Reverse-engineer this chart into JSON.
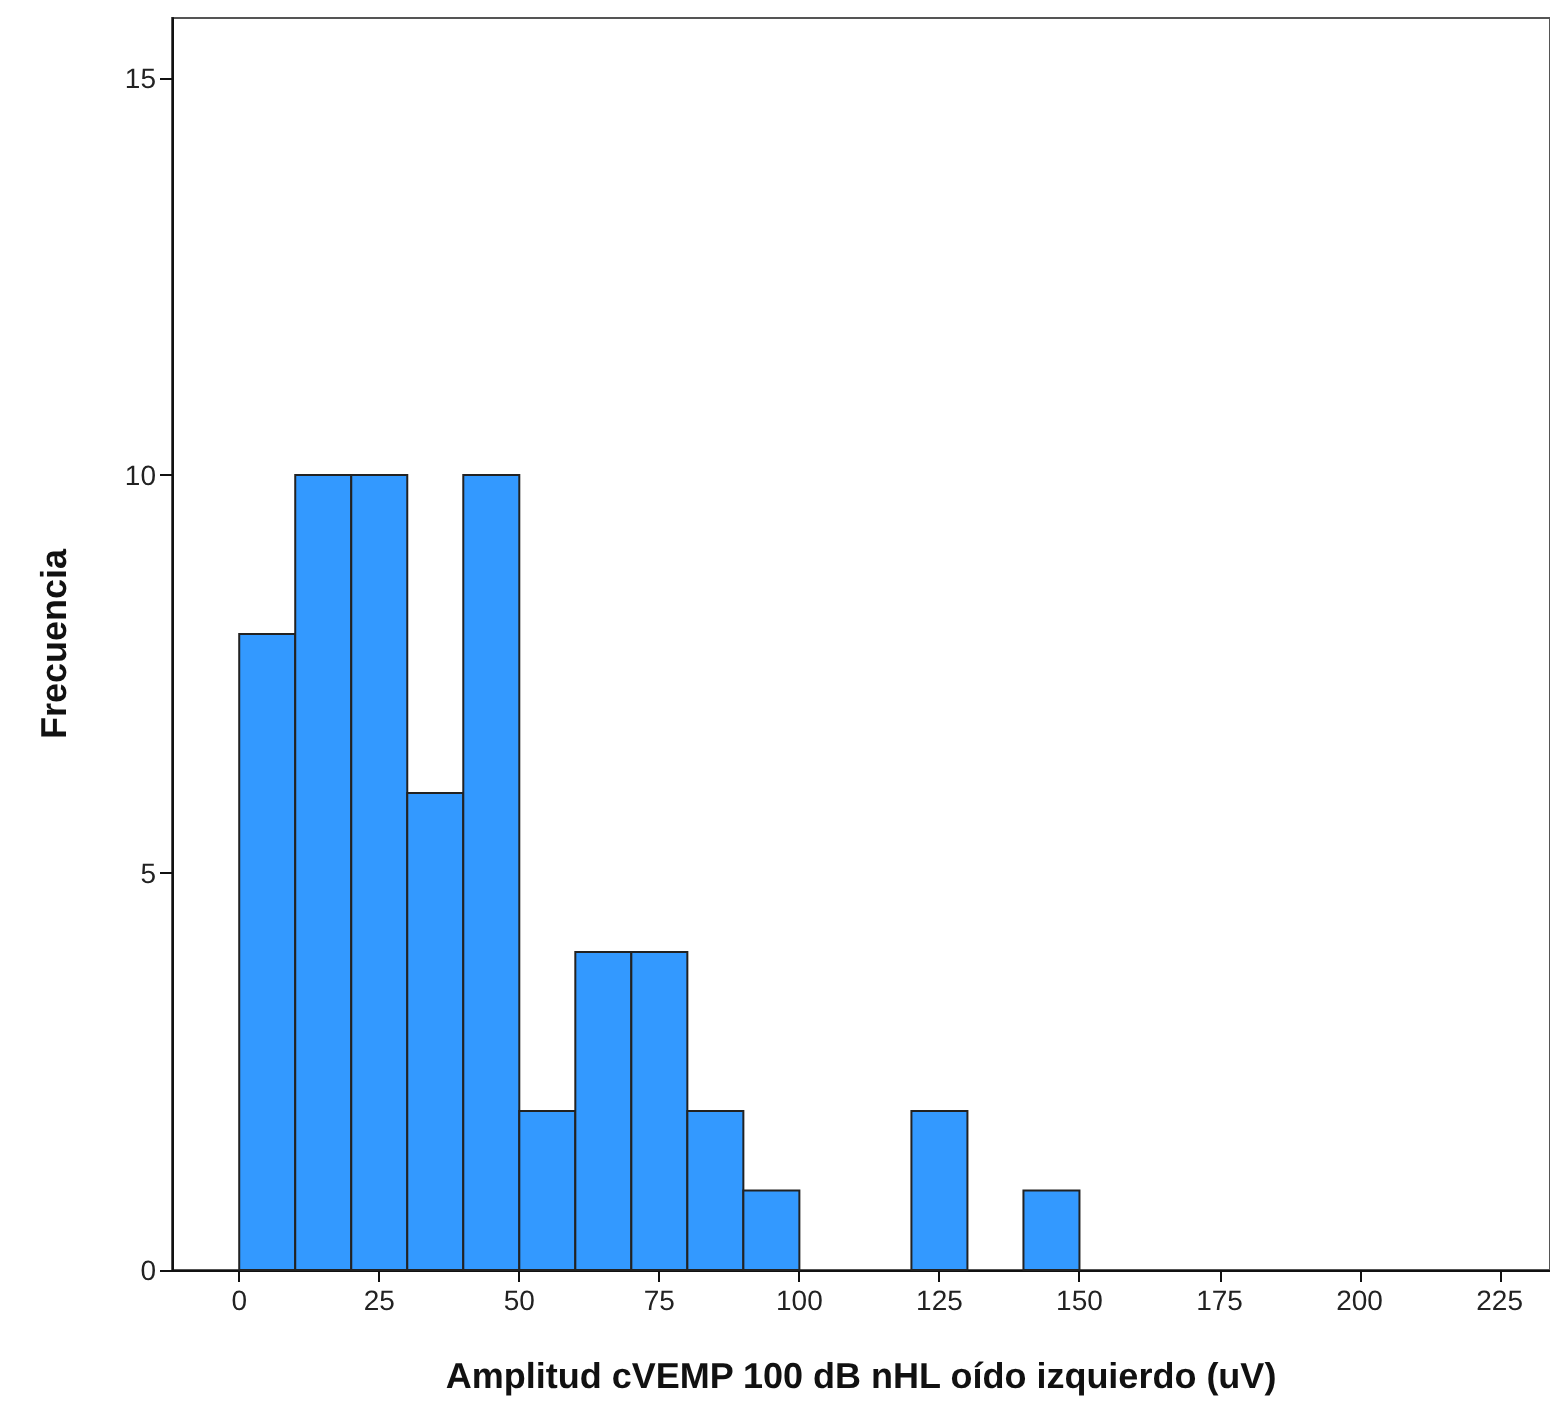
{
  "chart_data": {
    "type": "histogram",
    "xlabel": "Amplitud cVEMP 100 dB nHL oído izquierdo (uV)",
    "ylabel": "Frecuencia",
    "color": "#3399ff",
    "bins": [
      0,
      10,
      20,
      30,
      40,
      50,
      60,
      70,
      80,
      90,
      100,
      110,
      120,
      130,
      140,
      150
    ],
    "values": [
      8,
      10,
      10,
      6,
      10,
      2,
      4,
      4,
      2,
      1,
      0,
      0,
      2,
      0,
      1
    ],
    "xlim": [
      -12,
      234
    ],
    "xticks": [
      0,
      25,
      50,
      75,
      100,
      125,
      150,
      175,
      200,
      225
    ],
    "ylim": [
      0,
      15.75
    ],
    "yticks": [
      0,
      5,
      10,
      15
    ],
    "grid": false
  }
}
